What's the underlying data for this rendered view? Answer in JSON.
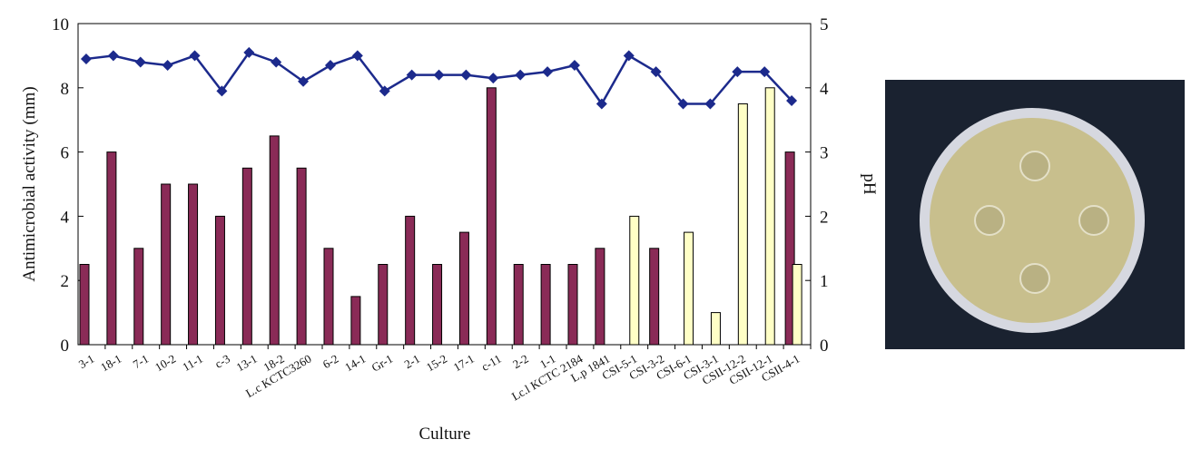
{
  "chart_data": {
    "type": "bar-line",
    "x_label": "Culture",
    "y_label": "Antimicrobial activity (mm)",
    "y2_label": "pH",
    "categories": [
      "3-1",
      "18-1",
      "7-1",
      "10-2",
      "11-1",
      "c-3",
      "13-1",
      "18-2",
      "L.c KCTC3260",
      "6-2",
      "14-1",
      "Gr-1",
      "2-1",
      "15-2",
      "17-1",
      "c-11",
      "2-2",
      "1-1",
      "Lc.l KCTC 2184",
      "L.p 1841",
      "CSI-5-1",
      "CSI-3-2",
      "CSI-6-1",
      "CSI-3-1",
      "CSII-12-2",
      "CSII-12-1",
      "CSII-4-1"
    ],
    "series": [
      {
        "type": "bar",
        "color": "#8a2b57",
        "values": [
          2.5,
          6,
          3,
          5,
          5,
          4,
          5.5,
          6.5,
          5.5,
          3,
          1.5,
          2.5,
          4,
          2.5,
          3.5,
          8,
          2.5,
          2.5,
          2.5,
          3,
          null,
          3,
          null,
          null,
          null,
          null,
          6
        ]
      },
      {
        "type": "bar",
        "color": "#ffffc6",
        "values": [
          null,
          null,
          null,
          null,
          null,
          null,
          null,
          null,
          null,
          null,
          null,
          null,
          null,
          null,
          null,
          null,
          null,
          null,
          null,
          null,
          4,
          null,
          3.5,
          1,
          7.5,
          8,
          2.5
        ]
      },
      {
        "type": "line",
        "axis": "y2",
        "color": "#1c2a8c",
        "values": [
          4.45,
          4.5,
          4.4,
          4.35,
          4.5,
          3.95,
          4.55,
          4.4,
          4.1,
          4.35,
          4.5,
          3.95,
          4.2,
          4.2,
          4.2,
          4.15,
          4.2,
          4.25,
          4.35,
          3.75,
          4.5,
          4.25,
          3.75,
          3.75,
          4.25,
          4.25,
          3.8
        ]
      }
    ],
    "ylim": [
      0,
      10
    ],
    "yticks": [
      0,
      2,
      4,
      6,
      8,
      10
    ],
    "y2lim": [
      0,
      5
    ],
    "y2ticks": [
      0,
      1,
      2,
      3,
      4,
      5
    ]
  }
}
